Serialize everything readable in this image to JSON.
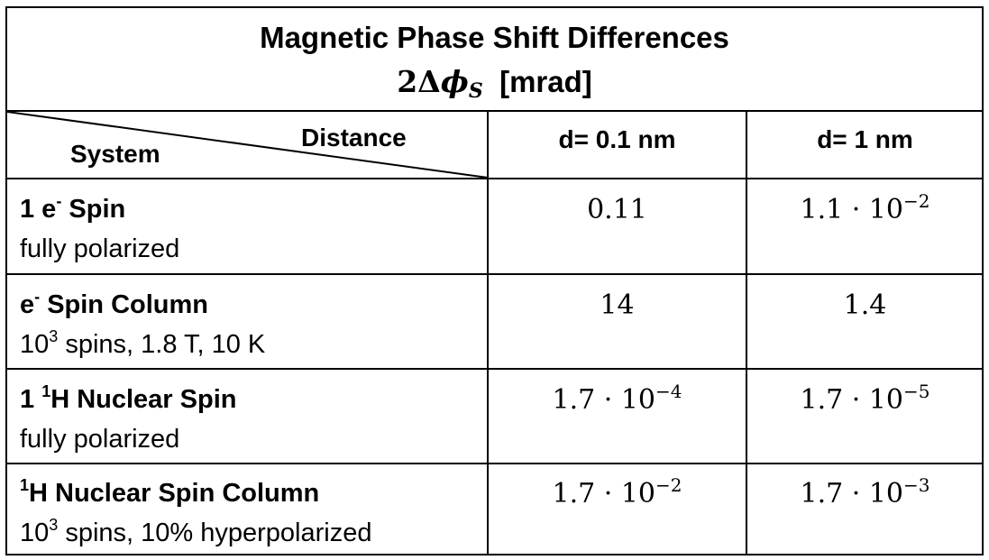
{
  "title": {
    "line1": "Magnetic Phase Shift Differences",
    "symbol_coef": "2Δ",
    "symbol_var": "ϕ",
    "symbol_sub": "S",
    "unit": "[mrad]"
  },
  "header": {
    "distance_label": "Distance",
    "system_label": "System",
    "col1": "d= 0.1 nm",
    "col2": "d= 1 nm"
  },
  "rows": [
    {
      "title_pre": "1 e",
      "title_sup": "-",
      "title_post": " Spin",
      "sub_pre": "fully polarized",
      "sub_sup": "",
      "sub_post": "",
      "v1_base": "0.11",
      "v1_exp": "",
      "v2_base": "1.1 · 10",
      "v2_exp": "−2"
    },
    {
      "title_pre": "e",
      "title_sup": "-",
      "title_post": " Spin Column",
      "sub_pre": "10",
      "sub_sup": "3",
      "sub_post": " spins, 1.8 T, 10 K",
      "v1_base": "14",
      "v1_exp": "",
      "v2_base": "1.4",
      "v2_exp": ""
    },
    {
      "title_pre": "1 ",
      "title_sup": "1",
      "title_post": "H Nuclear Spin",
      "sub_pre": "fully polarized",
      "sub_sup": "",
      "sub_post": "",
      "v1_base": "1.7 · 10",
      "v1_exp": "−4",
      "v2_base": "1.7 · 10",
      "v2_exp": "−5"
    },
    {
      "title_pre": "",
      "title_sup": "1",
      "title_post": "H Nuclear Spin Column",
      "sub_pre": "10",
      "sub_sup": "3",
      "sub_post": " spins, 10% hyperpolarized",
      "v1_base": "1.7 · 10",
      "v1_exp": "−2",
      "v2_base": "1.7 · 10",
      "v2_exp": "−3"
    }
  ]
}
